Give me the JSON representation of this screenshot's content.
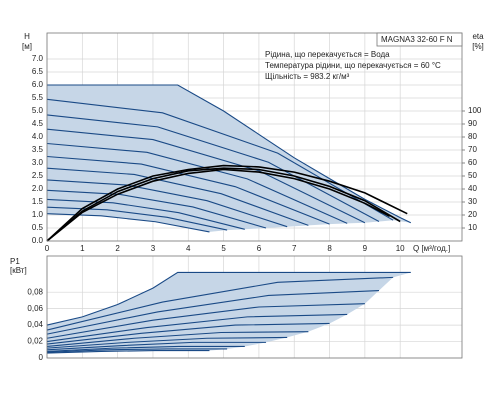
{
  "info": {
    "model": "MAGNA3 32-60 F N",
    "lines": [
      "Рідина, що перекачується = Вода",
      "Температура рідини, що перекачується = 60 °C",
      "Щільність = 983.2 кг/м³"
    ]
  },
  "chart_data": [
    {
      "type": "line",
      "y_label": "H",
      "y_unit": "[м]",
      "y2_label": "eta",
      "y2_unit": "[%]",
      "x_label": "Q [м³/год.]",
      "xlim": [
        0,
        11.75
      ],
      "xticks": [
        0,
        1,
        2,
        3,
        4,
        5,
        6,
        7,
        8,
        9,
        10
      ],
      "ylim": [
        0,
        8
      ],
      "yticks": [
        {
          "value": 0,
          "label": "0.0"
        },
        {
          "value": 0.5,
          "label": "0.5"
        },
        {
          "value": 1,
          "label": "1.0"
        },
        {
          "value": 1.5,
          "label": "1.5"
        },
        {
          "value": 2,
          "label": "2.0"
        },
        {
          "value": 2.5,
          "label": "2.5"
        },
        {
          "value": 3,
          "label": "3.0"
        },
        {
          "value": 3.5,
          "label": "3.5"
        },
        {
          "value": 4,
          "label": "4.0"
        },
        {
          "value": 4.5,
          "label": "4.5"
        },
        {
          "value": 5,
          "label": "5.0"
        },
        {
          "value": 5.5,
          "label": "5.5"
        },
        {
          "value": 6,
          "label": "6.0"
        },
        {
          "value": 6.5,
          "label": "6.5"
        },
        {
          "value": 7,
          "label": "7.0"
        }
      ],
      "y2lim": [
        0,
        160
      ],
      "y2ticks": [
        10,
        20,
        30,
        40,
        50,
        60,
        70,
        80,
        90,
        100
      ],
      "grid": true,
      "fill_color": "#c6d6e7",
      "series": [
        {
          "color": "#1a4a86",
          "x": [
            0,
            3.7,
            5,
            6,
            7,
            8,
            9,
            10,
            10.3
          ],
          "values": [
            6.0,
            6.0,
            5.0,
            4.1,
            3.2,
            2.4,
            1.6,
            0.9,
            0.7
          ]
        },
        {
          "color": "#1a4a86",
          "x": [
            0,
            3.27,
            6.53,
            9.8
          ],
          "values": [
            5.45,
            4.93,
            3.38,
            0.8
          ]
        },
        {
          "color": "#1a4a86",
          "x": [
            0,
            3.13,
            6.27,
            9.4
          ],
          "values": [
            4.85,
            4.39,
            3.03,
            0.75
          ]
        },
        {
          "color": "#1a4a86",
          "x": [
            0,
            3,
            6,
            9
          ],
          "values": [
            4.3,
            3.9,
            2.7,
            0.7
          ]
        },
        {
          "color": "#1a4a86",
          "x": [
            0,
            2.83,
            5.67,
            8.5
          ],
          "values": [
            3.75,
            3.41,
            2.39,
            0.68
          ]
        },
        {
          "color": "#1a4a86",
          "x": [
            0,
            2.67,
            5.33,
            8
          ],
          "values": [
            3.25,
            2.96,
            2.09,
            0.65
          ]
        },
        {
          "color": "#1a4a86",
          "x": [
            0,
            2.47,
            4.93,
            7.4
          ],
          "values": [
            2.8,
            2.56,
            1.82,
            0.6
          ]
        },
        {
          "color": "#1a4a86",
          "x": [
            0,
            2.27,
            4.53,
            6.8
          ],
          "values": [
            2.35,
            2.15,
            1.55,
            0.55
          ]
        },
        {
          "color": "#1a4a86",
          "x": [
            0,
            2.07,
            4.13,
            6.2
          ],
          "values": [
            1.95,
            1.79,
            1.31,
            0.5
          ]
        },
        {
          "color": "#1a4a86",
          "x": [
            0,
            1.87,
            3.73,
            5.6
          ],
          "values": [
            1.6,
            1.47,
            1.09,
            0.45
          ]
        },
        {
          "color": "#1a4a86",
          "x": [
            0,
            1.7,
            3.4,
            5.1
          ],
          "values": [
            1.3,
            1.2,
            0.91,
            0.42
          ]
        },
        {
          "color": "#1a4a86",
          "x": [
            0,
            1.53,
            3.07,
            4.6
          ],
          "values": [
            1.05,
            0.97,
            0.74,
            0.35
          ]
        },
        {
          "color": "#000000",
          "axis": "y2",
          "x": [
            0,
            1,
            2,
            3,
            4,
            5,
            6,
            7,
            8,
            9,
            10.2
          ],
          "values": [
            0,
            25,
            40,
            50,
            55,
            58,
            57,
            53,
            46,
            37,
            21
          ]
        },
        {
          "color": "#000000",
          "axis": "y2",
          "x": [
            0,
            1,
            2,
            3,
            4,
            5,
            6,
            7,
            8,
            9,
            10
          ],
          "values": [
            0,
            23,
            38,
            48,
            54,
            56,
            55,
            50,
            42,
            31,
            15
          ]
        },
        {
          "color": "#000000",
          "axis": "y2",
          "x": [
            0,
            1,
            2,
            3,
            4,
            5,
            6,
            7,
            8,
            9,
            9.7
          ],
          "values": [
            0,
            22,
            36,
            46,
            52,
            55,
            53,
            48,
            40,
            29,
            19
          ]
        }
      ]
    },
    {
      "type": "line",
      "y_label": "P1",
      "y_unit": "[кВт]",
      "xlim": [
        0,
        11.75
      ],
      "xticks": [
        0,
        1,
        2,
        3,
        4,
        5,
        6,
        7,
        8,
        9,
        10
      ],
      "ylim": [
        0,
        0.124
      ],
      "yticks": [
        0,
        {
          "value": 0.02,
          "label": "0,02"
        },
        {
          "value": 0.04,
          "label": "0,04"
        },
        {
          "value": 0.06,
          "label": "0,06"
        },
        {
          "value": 0.08,
          "label": "0,08"
        }
      ],
      "grid": true,
      "fill_color": "#c6d6e7",
      "series": [
        {
          "color": "#1a4a86",
          "x": [
            0,
            1,
            2,
            3,
            3.7,
            10.3
          ],
          "values": [
            0.04,
            0.05,
            0.065,
            0.085,
            0.104,
            0.104
          ]
        },
        {
          "color": "#1a4a86",
          "x": [
            0,
            3.27,
            6.53,
            9.8
          ],
          "values": [
            0.034,
            0.068,
            0.092,
            0.098
          ]
        },
        {
          "color": "#1a4a86",
          "x": [
            0,
            3.13,
            6.27,
            9.4
          ],
          "values": [
            0.029,
            0.056,
            0.076,
            0.082
          ]
        },
        {
          "color": "#1a4a86",
          "x": [
            0,
            3,
            6,
            9
          ],
          "values": [
            0.024,
            0.046,
            0.062,
            0.066
          ]
        },
        {
          "color": "#1a4a86",
          "x": [
            0,
            2.83,
            5.67,
            8.5
          ],
          "values": [
            0.02,
            0.037,
            0.05,
            0.053
          ]
        },
        {
          "color": "#1a4a86",
          "x": [
            0,
            2.67,
            5.33,
            8
          ],
          "values": [
            0.017,
            0.03,
            0.04,
            0.042
          ]
        },
        {
          "color": "#1a4a86",
          "x": [
            0,
            2.47,
            4.93,
            7.4
          ],
          "values": [
            0.014,
            0.024,
            0.031,
            0.032
          ]
        },
        {
          "color": "#1a4a86",
          "x": [
            0,
            2.27,
            4.53,
            6.8
          ],
          "values": [
            0.012,
            0.019,
            0.024,
            0.025
          ]
        },
        {
          "color": "#1a4a86",
          "x": [
            0,
            2.07,
            4.13,
            6.2
          ],
          "values": [
            0.01,
            0.015,
            0.019,
            0.019
          ]
        },
        {
          "color": "#1a4a86",
          "x": [
            0,
            1.87,
            3.73,
            5.6
          ],
          "values": [
            0.008,
            0.012,
            0.014,
            0.014
          ]
        },
        {
          "color": "#1a4a86",
          "x": [
            0,
            1.7,
            3.4,
            5.1
          ],
          "values": [
            0.007,
            0.01,
            0.011,
            0.011
          ]
        },
        {
          "color": "#1a4a86",
          "x": [
            0,
            1.53,
            3.07,
            4.6
          ],
          "values": [
            0.006,
            0.008,
            0.009,
            0.009
          ]
        }
      ]
    }
  ]
}
